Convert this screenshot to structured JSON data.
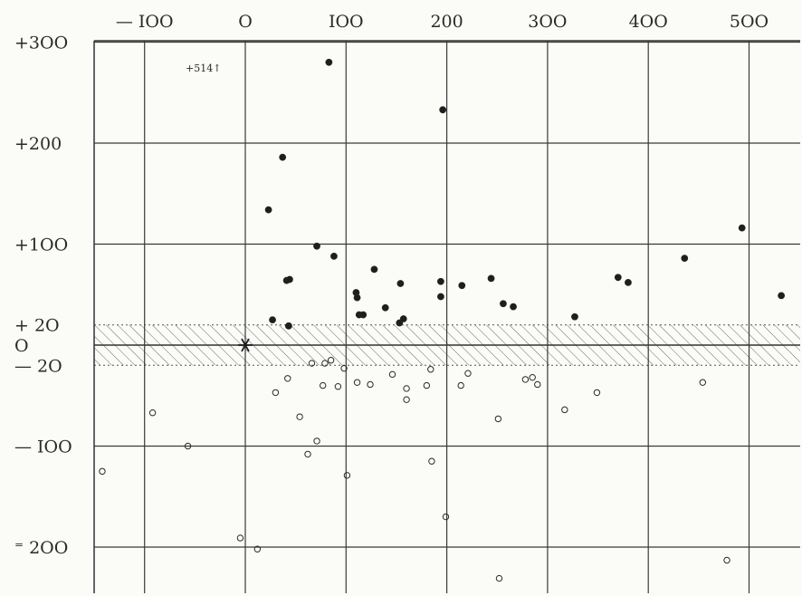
{
  "chart_data": {
    "type": "scatter",
    "title": "",
    "xlabel": "",
    "ylabel": "",
    "xlim": [
      -147,
      555
    ],
    "ylim": [
      -238,
      315
    ],
    "grid": true,
    "x_tick_labels": [
      {
        "value": -100,
        "label": "— IOO"
      },
      {
        "value": 0,
        "label": "O"
      },
      {
        "value": 100,
        "label": "IOO"
      },
      {
        "value": 200,
        "label": "200"
      },
      {
        "value": 300,
        "label": "3OO"
      },
      {
        "value": 400,
        "label": "4OO"
      },
      {
        "value": 500,
        "label": "5OO"
      }
    ],
    "y_tick_labels": [
      {
        "value": 300,
        "label": "+3OO"
      },
      {
        "value": 200,
        "label": "+200"
      },
      {
        "value": 100,
        "label": "+1OO"
      },
      {
        "value": 20,
        "label": "+  2O"
      },
      {
        "value": 0,
        "label": "O"
      },
      {
        "value": -20,
        "label": "—  2O"
      },
      {
        "value": -100,
        "label": "— IOO"
      },
      {
        "value": -200,
        "label": "⁼ 2OO"
      }
    ],
    "grid_x": [
      -100,
      0,
      100,
      200,
      300,
      400,
      500
    ],
    "grid_y": [
      300,
      200,
      100,
      -100,
      -200
    ],
    "band": {
      "y_min": -20,
      "y_max": 20,
      "hatched": true
    },
    "origin_marker": {
      "x": 0,
      "y": 0,
      "symbol": "asterisk"
    },
    "annotation": {
      "text": "+514↑",
      "x": -58,
      "y": 290
    },
    "series": [
      {
        "marker": "filled-circle",
        "points": [
          [
            83,
            280
          ],
          [
            196,
            233
          ],
          [
            37,
            186
          ],
          [
            23,
            134
          ],
          [
            71,
            98
          ],
          [
            88,
            88
          ],
          [
            41,
            64
          ],
          [
            44,
            65
          ],
          [
            128,
            75
          ],
          [
            110,
            52
          ],
          [
            111,
            47
          ],
          [
            113,
            30
          ],
          [
            117,
            30
          ],
          [
            139,
            37
          ],
          [
            154,
            61
          ],
          [
            153,
            22
          ],
          [
            157,
            26
          ],
          [
            194,
            63
          ],
          [
            194,
            48
          ],
          [
            215,
            59
          ],
          [
            244,
            66
          ],
          [
            256,
            41
          ],
          [
            266,
            38
          ],
          [
            327,
            28
          ],
          [
            370,
            67
          ],
          [
            380,
            62
          ],
          [
            436,
            86
          ],
          [
            493,
            116
          ],
          [
            532,
            49
          ],
          [
            27,
            25
          ],
          [
            43,
            19
          ]
        ]
      },
      {
        "marker": "open-circle",
        "points": [
          [
            -142,
            -125
          ],
          [
            -92,
            -67
          ],
          [
            -57,
            -100
          ],
          [
            -5,
            -191
          ],
          [
            12,
            -202
          ],
          [
            30,
            -47
          ],
          [
            42,
            -33
          ],
          [
            54,
            -71
          ],
          [
            62,
            -108
          ],
          [
            66,
            -18
          ],
          [
            71,
            -95
          ],
          [
            77,
            -40
          ],
          [
            79,
            -18
          ],
          [
            85,
            -15
          ],
          [
            92,
            -41
          ],
          [
            98,
            -23
          ],
          [
            101,
            -129
          ],
          [
            111,
            -37
          ],
          [
            124,
            -39
          ],
          [
            146,
            -29
          ],
          [
            160,
            -43
          ],
          [
            160,
            -54
          ],
          [
            180,
            -40
          ],
          [
            184,
            -24
          ],
          [
            185,
            -115
          ],
          [
            199,
            -170
          ],
          [
            214,
            -40
          ],
          [
            221,
            -28
          ],
          [
            251,
            -73
          ],
          [
            252,
            -231
          ],
          [
            278,
            -34
          ],
          [
            285,
            -32
          ],
          [
            290,
            -39
          ],
          [
            317,
            -64
          ],
          [
            349,
            -47
          ],
          [
            454,
            -37
          ],
          [
            478,
            -213
          ]
        ]
      }
    ]
  }
}
